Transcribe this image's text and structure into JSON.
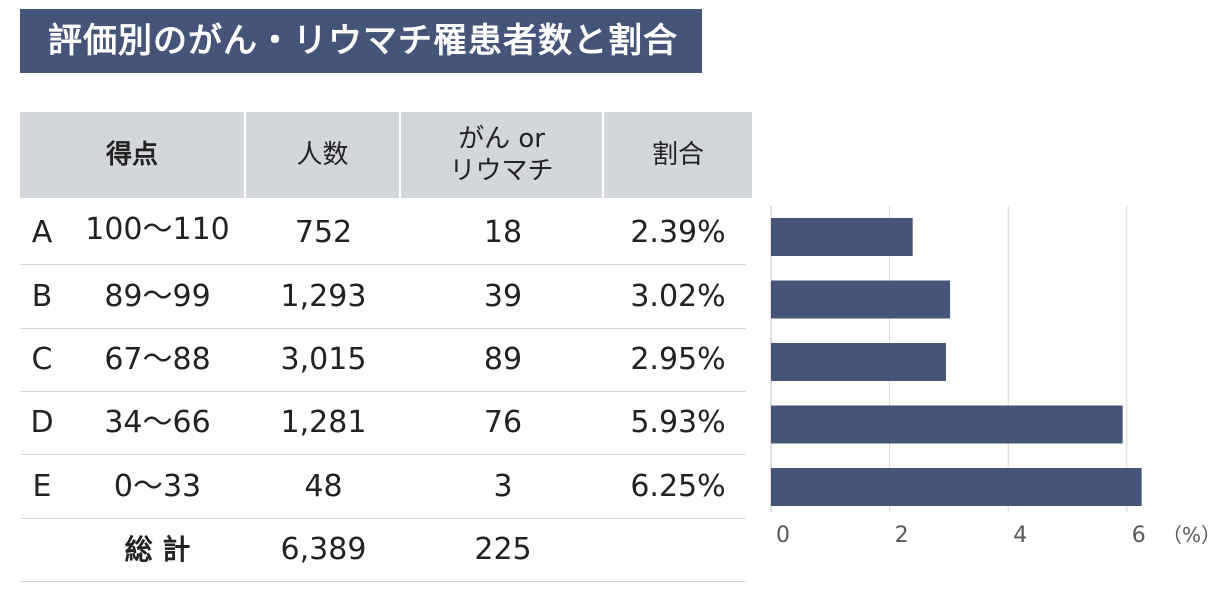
{
  "title": "評価別のがん・リウマチ罹患者数と割合",
  "table": {
    "headers": {
      "score": "得点",
      "count": "人数",
      "cr_line1": "がん or",
      "cr_line2": "リウマチ",
      "ratio": "割合"
    },
    "rows": [
      {
        "grade": "A",
        "range": "100～110",
        "count": "752",
        "cr": "18",
        "ratio": "2.39%"
      },
      {
        "grade": "B",
        "range": "89～99",
        "count": "1,293",
        "cr": "39",
        "ratio": "3.02%"
      },
      {
        "grade": "C",
        "range": "67～88",
        "count": "3,015",
        "cr": "89",
        "ratio": "2.95%"
      },
      {
        "grade": "D",
        "range": "34～66",
        "count": "1,281",
        "cr": "76",
        "ratio": "5.93%"
      },
      {
        "grade": "E",
        "range": "0～33",
        "count": "48",
        "cr": "3",
        "ratio": "6.25%"
      }
    ],
    "total": {
      "label": "総 計",
      "count": "6,389",
      "cr": "225"
    }
  },
  "chart_data": {
    "type": "bar",
    "orientation": "horizontal",
    "categories": [
      "A",
      "B",
      "C",
      "D",
      "E"
    ],
    "values": [
      2.39,
      3.02,
      2.95,
      5.93,
      6.25
    ],
    "xlim": [
      0,
      6.5
    ],
    "xticks": [
      0,
      2,
      4,
      6
    ],
    "xunit": "（%）",
    "grid": true,
    "bar_color": "#45557a"
  }
}
